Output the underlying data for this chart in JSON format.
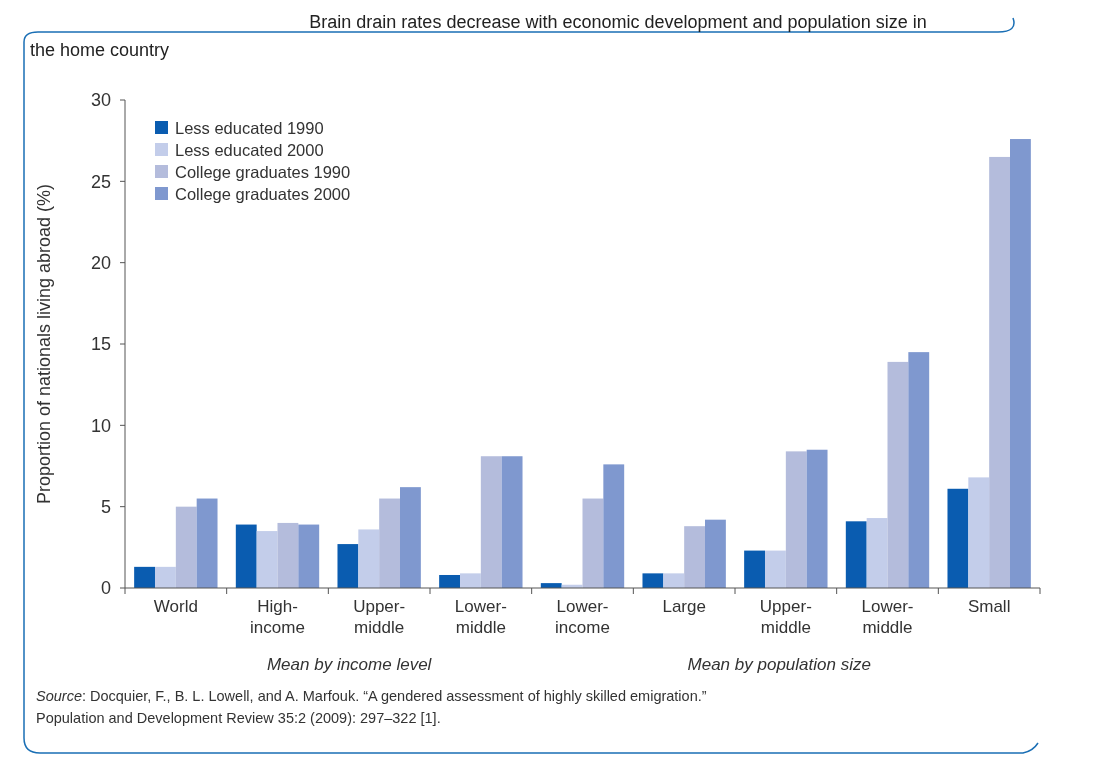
{
  "chart_data": {
    "type": "bar",
    "title": "Brain drain rates decrease with economic development and population size in the home country",
    "ylabel": "Proportion of nationals living abroad (%)",
    "categories": [
      "World",
      "High-income",
      "Upper-middle",
      "Lower-middle",
      "Lower-income",
      "Large",
      "Upper-middle",
      "Lower-middle",
      "Small"
    ],
    "series": [
      {
        "name": "Less educated 1990",
        "color": "#0a5cb0",
        "values": [
          1.3,
          3.9,
          2.7,
          0.8,
          0.3,
          0.9,
          2.3,
          4.1,
          6.1
        ]
      },
      {
        "name": "Less educated 2000",
        "color": "#c3cdea",
        "values": [
          1.3,
          3.5,
          3.6,
          0.9,
          0.2,
          0.9,
          2.3,
          4.3,
          6.8
        ]
      },
      {
        "name": "College graduates 1990",
        "color": "#b4bcdc",
        "values": [
          5.0,
          4.0,
          5.5,
          8.1,
          5.5,
          3.8,
          8.4,
          13.9,
          26.5
        ]
      },
      {
        "name": "College graduates 2000",
        "color": "#7f98cf",
        "values": [
          5.5,
          3.9,
          6.2,
          8.1,
          7.6,
          4.2,
          8.5,
          14.5,
          27.6
        ]
      }
    ],
    "ylim": [
      0,
      30
    ],
    "yticks": [
      0,
      5,
      10,
      15,
      20,
      25,
      30
    ],
    "legend": "top left",
    "annotations": [
      "Mean by income level",
      "Mean by population size",
      "Source: Docquier, F., B. L. Lowell, and A. Marfouk. “A gendered assessment of highly skilled emigration.” Population and Development Review 35:2 (2009): 297–322 [1]."
    ]
  }
}
